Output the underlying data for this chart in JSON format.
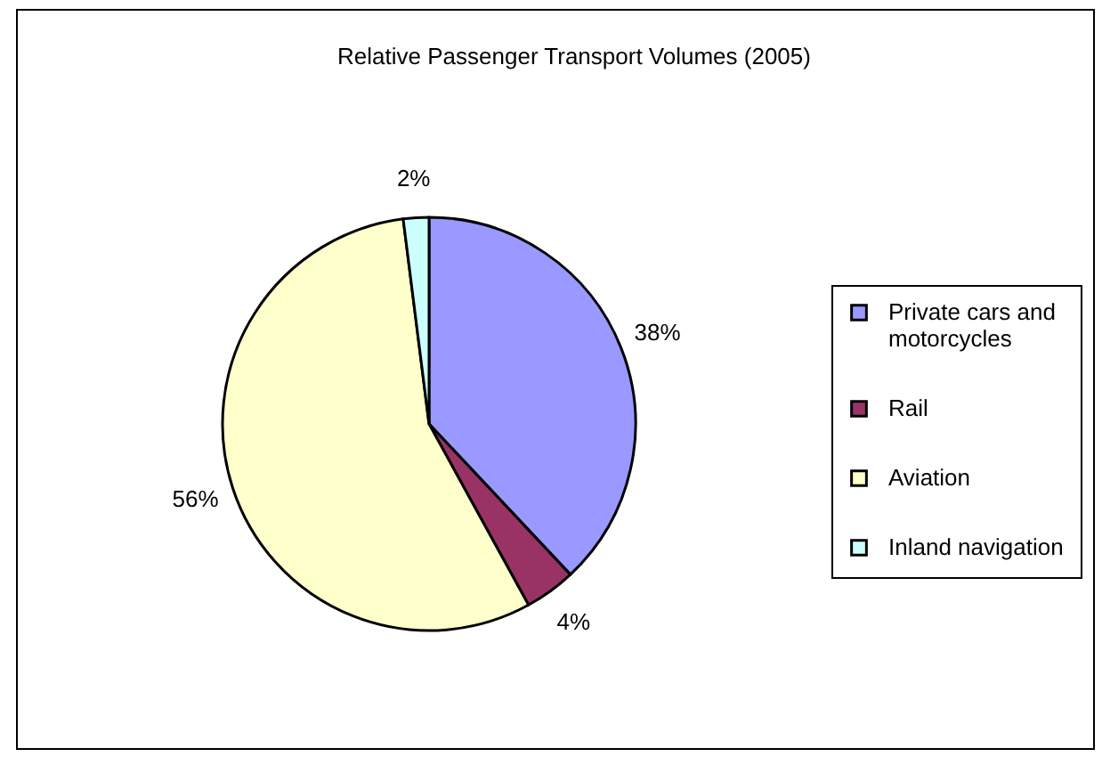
{
  "chart_data": {
    "type": "pie",
    "title": "Relative Passenger Transport Volumes (2005)",
    "categories": [
      "Private cars and motorcycles",
      "Rail",
      "Aviation",
      "Inland navigation"
    ],
    "values": [
      38,
      4,
      56,
      2
    ],
    "colors": [
      "#9999ff",
      "#993366",
      "#ffffcc",
      "#ccffff"
    ],
    "value_labels": [
      "38%",
      "4%",
      "56%",
      "2%"
    ],
    "legend": "right"
  }
}
